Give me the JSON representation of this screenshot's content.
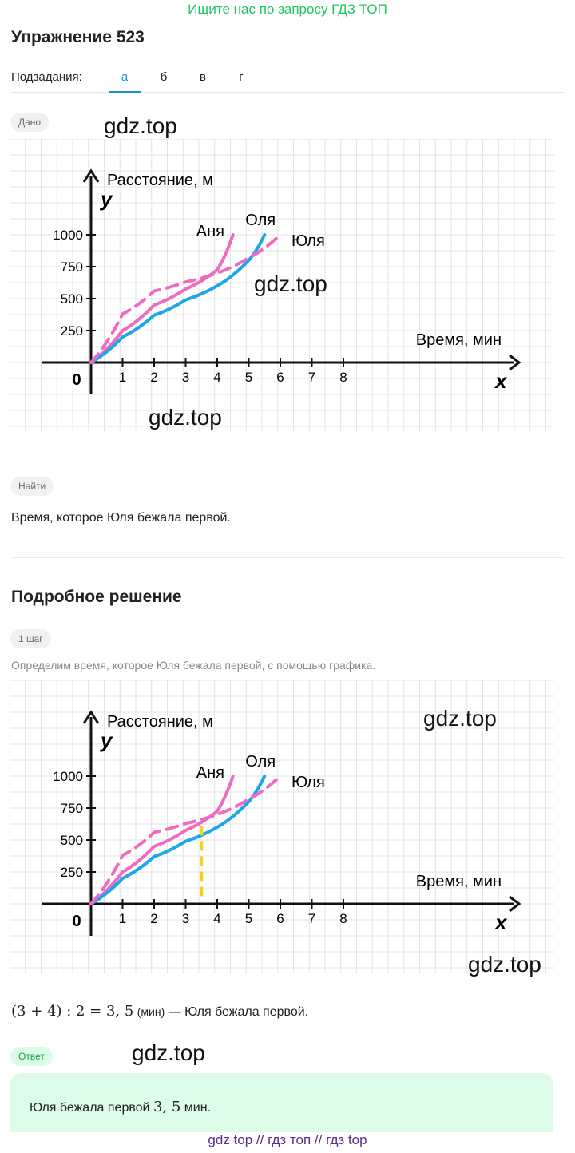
{
  "promo": "Ищите нас по запросу ГДЗ ТОП",
  "exercise_title": "Упражнение 523",
  "subtasks": {
    "label": "Подзадания:",
    "tabs": [
      "а",
      "б",
      "в",
      "г"
    ],
    "active_index": 0
  },
  "given": {
    "chip": "Дано"
  },
  "find": {
    "chip": "Найти",
    "text": "Время, которое Юля бежала первой."
  },
  "solution": {
    "title": "Подробное решение",
    "step_chip": "1 шаг",
    "step_text": "Определим время, которое Юля бежала первой, с помощью графика.",
    "formula": "(3 + 4) : 2 = 3, 5",
    "formula_unit": "(мин)",
    "formula_tail": "— Юля бежала первой."
  },
  "answer": {
    "chip": "Ответ",
    "text_prefix": "Юля бежала первой",
    "value": "3, 5",
    "unit": "мин."
  },
  "watermark": "gdz.top",
  "footer": "gdz top  //  гдз топ  //  гдз top",
  "colors": {
    "anya": "#f06bbf",
    "olya": "#1ea7e8",
    "yulya": "#f06bbf",
    "marker": "#f5d316",
    "grid": "#e3e3e3",
    "promo": "#22c55e",
    "tab_active": "#1a8fd6"
  },
  "chart_data": [
    {
      "type": "line",
      "ylabel": "Расстояние, м",
      "xlabel": "Время, мин",
      "x_axis_letter": "x",
      "y_axis_letter": "y",
      "origin_label": "0",
      "x_ticks": [
        "1",
        "2",
        "3",
        "4",
        "5",
        "6",
        "7",
        "8"
      ],
      "y_ticks": [
        "250",
        "500",
        "750",
        "1000"
      ],
      "series": [
        {
          "name": "Аня",
          "style": "solid",
          "points": [
            [
              0,
              0
            ],
            [
              1,
              250
            ],
            [
              2,
              450
            ],
            [
              3,
              575
            ],
            [
              4,
              725
            ],
            [
              4.5,
              1000
            ]
          ]
        },
        {
          "name": "Оля",
          "style": "solid",
          "points": [
            [
              0,
              0
            ],
            [
              1,
              200
            ],
            [
              2,
              370
            ],
            [
              3,
              490
            ],
            [
              4,
              600
            ],
            [
              5,
              800
            ],
            [
              5.5,
              1000
            ]
          ]
        },
        {
          "name": "Юля",
          "style": "dashed",
          "points": [
            [
              0,
              0
            ],
            [
              1,
              380
            ],
            [
              2,
              560
            ],
            [
              3,
              630
            ],
            [
              4,
              700
            ],
            [
              5,
              820
            ],
            [
              6,
              1000
            ]
          ]
        }
      ]
    },
    {
      "type": "line",
      "ylabel": "Расстояние, м",
      "xlabel": "Время, мин",
      "x_axis_letter": "x",
      "y_axis_letter": "y",
      "origin_label": "0",
      "x_ticks": [
        "1",
        "2",
        "3",
        "4",
        "5",
        "6",
        "7",
        "8"
      ],
      "y_ticks": [
        "250",
        "500",
        "750",
        "1000"
      ],
      "series": [
        {
          "name": "Аня",
          "style": "solid",
          "points": [
            [
              0,
              0
            ],
            [
              1,
              250
            ],
            [
              2,
              450
            ],
            [
              3,
              575
            ],
            [
              4,
              725
            ],
            [
              4.5,
              1000
            ]
          ]
        },
        {
          "name": "Оля",
          "style": "solid",
          "points": [
            [
              0,
              0
            ],
            [
              1,
              200
            ],
            [
              2,
              370
            ],
            [
              3,
              490
            ],
            [
              4,
              600
            ],
            [
              5,
              800
            ],
            [
              5.5,
              1000
            ]
          ]
        },
        {
          "name": "Юля",
          "style": "dashed",
          "points": [
            [
              0,
              0
            ],
            [
              1,
              380
            ],
            [
              2,
              560
            ],
            [
              3,
              630
            ],
            [
              4,
              700
            ],
            [
              5,
              820
            ],
            [
              6,
              1000
            ]
          ]
        }
      ],
      "marker_x": 3.5
    }
  ]
}
